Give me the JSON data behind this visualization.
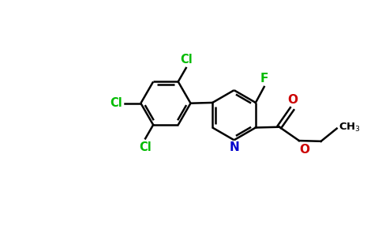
{
  "bg_color": "#ffffff",
  "bond_color": "#000000",
  "cl_color": "#00bb00",
  "f_color": "#00bb00",
  "n_color": "#0000cc",
  "o_color": "#cc0000",
  "c_color": "#000000",
  "lw": 1.8,
  "figsize": [
    4.84,
    3.0
  ],
  "dpi": 100,
  "xlim": [
    0,
    9.68
  ],
  "ylim": [
    0,
    6.0
  ]
}
